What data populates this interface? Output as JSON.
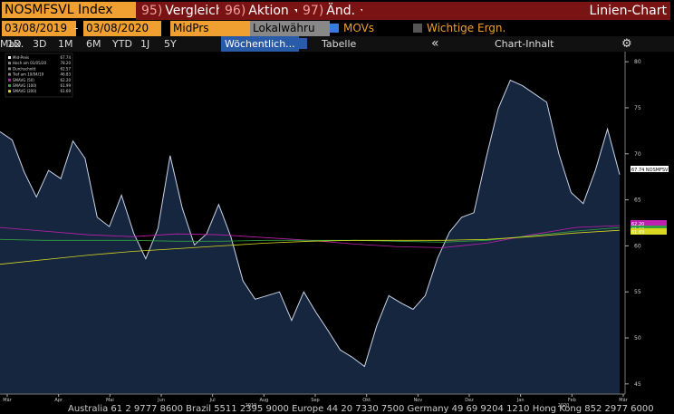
{
  "toolbar": {
    "security": "NOSMFSVL Index",
    "buttons": [
      {
        "num": "95)",
        "label": "Vergleich"
      },
      {
        "num": "96)",
        "label": "Aktion"
      },
      {
        "num": "97)",
        "label": "Änd."
      }
    ],
    "view": "Linien-Chart"
  },
  "settings": {
    "start": "03/08/2019",
    "dash": "-",
    "end": "03/08/2020",
    "field": "MidPrs",
    "currency": "Lokalwähru",
    "movs": "MOVs",
    "events": "Wichtige Ergn."
  },
  "periods": [
    "1D",
    "3D",
    "1M",
    "6M",
    "YTD",
    "1J",
    "5Y",
    "Max."
  ],
  "frequency": "Wöchentlich...",
  "table": "Tabelle",
  "content": "Chart-Inhalt",
  "footer": "Australia 61 2 9777 8600 Brazil 5511 2395 9000 Europe 44 20 7330 7500 Germany 49 69 9204 1210 Hong Kong 852 2977 6000",
  "chart_data": {
    "type": "line",
    "legend": [
      {
        "label": "Mid-Preis",
        "value": "67.74"
      },
      {
        "label": "Hoch am 01/05/20",
        "value": "78.20"
      },
      {
        "label": "Durchschnitt",
        "value": "62.57"
      },
      {
        "label": "Tief am 10/04/19",
        "value": "46.83"
      },
      {
        "label": "SMAVG (50)",
        "value": "62.20"
      },
      {
        "label": "SMAVG (100)",
        "value": "61.99"
      },
      {
        "label": "SMAVG (200)",
        "value": "61.69"
      }
    ],
    "xtick_labels": [
      "Mär",
      "Apr",
      "Mai",
      "Jun",
      "Jul",
      "Aug",
      "Sep",
      "Okt",
      "Nov",
      "Dez",
      "Jan",
      "Feb",
      "Mär"
    ],
    "years": [
      "2019",
      "2020"
    ],
    "series": [
      {
        "name": "Mid-Preis",
        "color": "#c8d4e8",
        "fill": "#17263f",
        "values": [
          72.4,
          71.5,
          68.0,
          65.3,
          68.2,
          67.3,
          71.4,
          69.5,
          63.1,
          62.1,
          65.5,
          61.4,
          58.6,
          61.9,
          69.8,
          64.1,
          60.1,
          61.3,
          64.5,
          61.0,
          56.2,
          54.2,
          54.6,
          55.0,
          51.9,
          55.0,
          52.8,
          50.8,
          48.7,
          47.9,
          46.9,
          51.3,
          54.6,
          53.8,
          53.1,
          54.6,
          58.6,
          61.5,
          63.1,
          63.6,
          69.5,
          74.9,
          78.0,
          77.4,
          76.5,
          75.6,
          70.0,
          65.8,
          64.6,
          68.2,
          72.7,
          67.74
        ],
        "end_label": "67.74 NOSMFSVL"
      },
      {
        "name": "SMAVG (50)",
        "color": "#c020b0",
        "values": [
          62.0,
          61.6,
          61.2,
          61.0,
          61.3,
          61.2,
          60.9,
          60.6,
          60.2,
          59.9,
          59.8,
          60.3,
          61.2,
          62.0,
          62.2
        ],
        "end_label": "62.20"
      },
      {
        "name": "SMAVG (100)",
        "color": "#30a040",
        "values": [
          60.7,
          60.6,
          60.6,
          60.6,
          60.5,
          60.5,
          60.6,
          60.6,
          60.6,
          60.5,
          60.4,
          60.6,
          61.1,
          61.6,
          61.99
        ],
        "end_label": "61.99"
      },
      {
        "name": "SMAVG (200)",
        "color": "#d8d820",
        "values": [
          58.0,
          58.5,
          59.0,
          59.4,
          59.7,
          60.0,
          60.3,
          60.5,
          60.6,
          60.6,
          60.6,
          60.7,
          61.0,
          61.4,
          61.69
        ],
        "end_label": "61.69"
      }
    ],
    "ylim": [
      43.9,
      81.1
    ],
    "yticks": [
      45,
      50,
      55,
      60,
      65,
      70,
      75,
      80
    ],
    "grid": false
  }
}
